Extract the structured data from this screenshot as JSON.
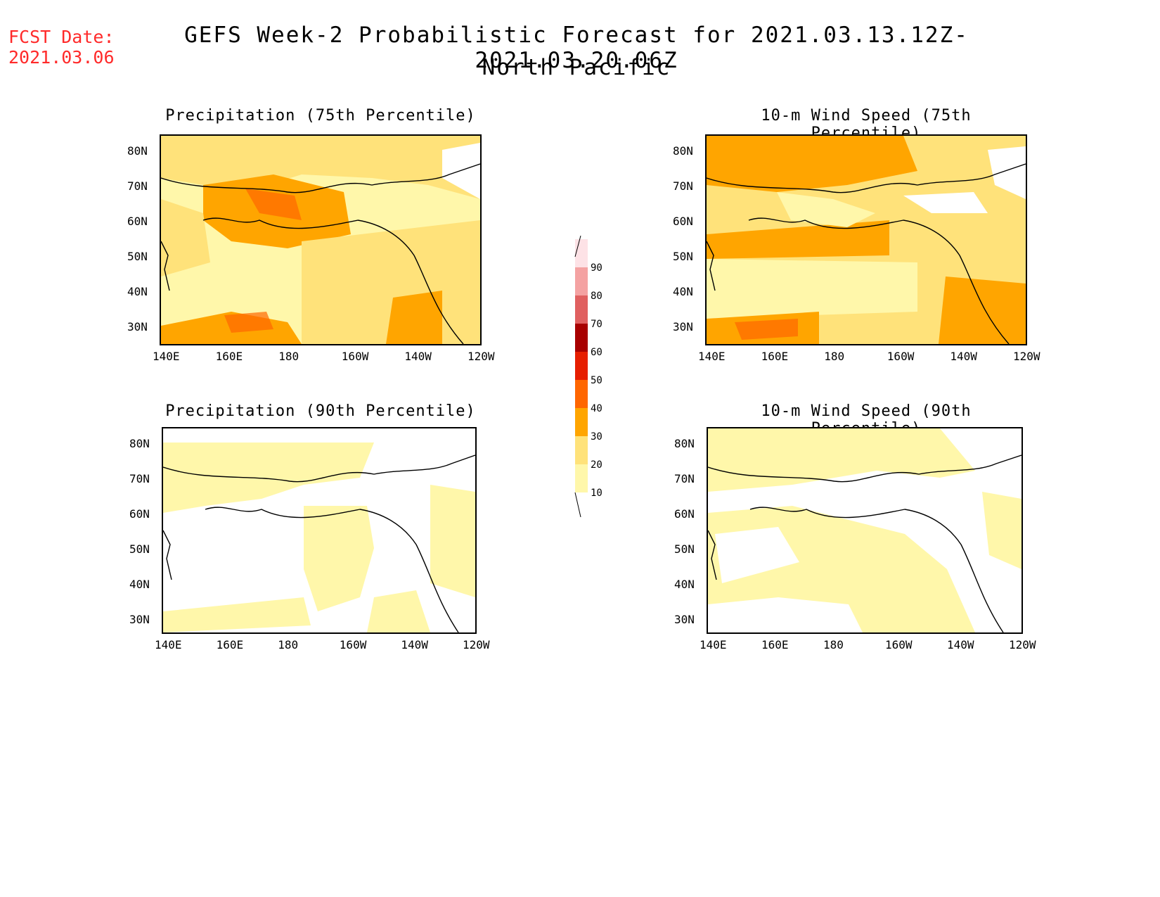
{
  "header": {
    "fcst_label": "FCST Date:",
    "fcst_date": "2021.03.06",
    "title": "GEFS Week-2 Probabilistic Forecast for 2021.03.13.12Z-2021.03.20.06Z",
    "subtitle": "North Pacific"
  },
  "panels": [
    {
      "id": "precip75",
      "title": "Precipitation (75th Percentile)"
    },
    {
      "id": "wind75",
      "title": "10-m Wind Speed (75th Percentile)"
    },
    {
      "id": "precip90",
      "title": "Precipitation (90th Percentile)"
    },
    {
      "id": "wind90",
      "title": "10-m Wind Speed (90th Percentile)"
    }
  ],
  "axes": {
    "lon_labels": [
      "140E",
      "160E",
      "180",
      "160W",
      "140W",
      "120W"
    ],
    "lat_labels": [
      "80N",
      "70N",
      "60N",
      "50N",
      "40N",
      "30N"
    ]
  },
  "colorbar": {
    "levels": [
      "10",
      "20",
      "30",
      "40",
      "50",
      "60",
      "70",
      "80",
      "90"
    ],
    "colors": [
      "#fff7aa",
      "#ffe27a",
      "#ffa500",
      "#ff6600",
      "#e61e00",
      "#a80000",
      "#e06060",
      "#f4a2a2",
      "#fde2e6"
    ]
  }
}
